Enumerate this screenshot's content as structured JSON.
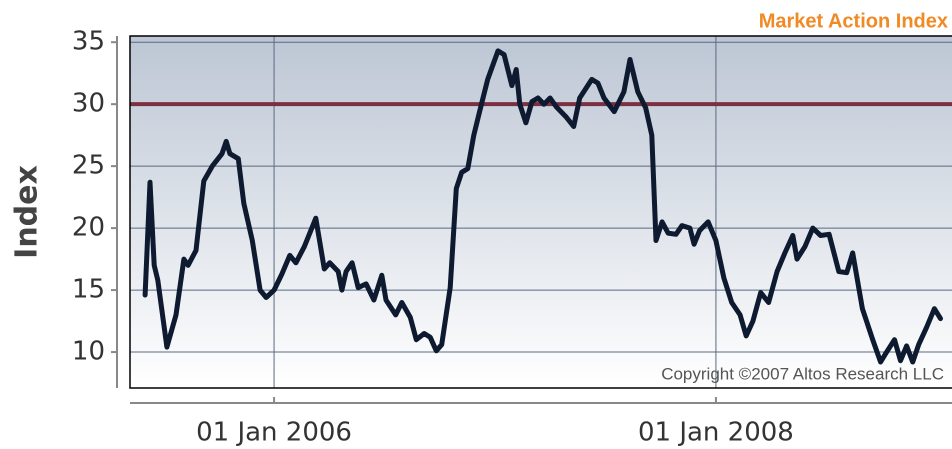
{
  "chart_data": {
    "type": "line",
    "title": "Market Action Index",
    "ylabel": "Index",
    "annotation": "Copyright ©2007 Altos Research LLC",
    "reference_line": {
      "value": 30,
      "color": "#7a3040"
    },
    "xlim": [
      "2005-05-08",
      "2009-01-25"
    ],
    "xticks": [
      {
        "value": "2006-01-01",
        "label": "01 Jan 2006"
      },
      {
        "value": "2008-01-01",
        "label": "01 Jan 2008"
      }
    ],
    "ylim": [
      7.1,
      35.5
    ],
    "yticks": [
      10,
      15,
      20,
      25,
      30,
      35
    ],
    "grid": true,
    "x": [
      "2005-06-02",
      "2005-06-10",
      "2005-06-17",
      "2005-06-23",
      "2005-07-08",
      "2005-07-23",
      "2005-08-05",
      "2005-08-12",
      "2005-08-25",
      "2005-09-07",
      "2005-09-21",
      "2005-10-07",
      "2005-10-14",
      "2005-10-20",
      "2005-11-03",
      "2005-11-12",
      "2005-11-26",
      "2005-12-09",
      "2005-12-19",
      "2006-01-01",
      "2006-01-14",
      "2006-01-27",
      "2006-02-06",
      "2006-02-20",
      "2006-03-11",
      "2006-03-25",
      "2006-04-03",
      "2006-04-17",
      "2006-04-23",
      "2006-04-30",
      "2006-05-10",
      "2006-05-20",
      "2006-06-02",
      "2006-06-15",
      "2006-06-28",
      "2006-07-05",
      "2006-07-21",
      "2006-07-31",
      "2006-08-14",
      "2006-08-24",
      "2006-09-06",
      "2006-09-16",
      "2006-09-26",
      "2006-10-05",
      "2006-10-19",
      "2006-10-29",
      "2006-11-07",
      "2006-11-17",
      "2006-11-27",
      "2006-12-07",
      "2006-12-20",
      "2007-01-06",
      "2007-01-16",
      "2007-01-29",
      "2007-02-05",
      "2007-02-11",
      "2007-02-21",
      "2007-03-03",
      "2007-03-13",
      "2007-03-23",
      "2007-04-02",
      "2007-04-12",
      "2007-04-28",
      "2007-05-11",
      "2007-05-21",
      "2007-06-10",
      "2007-06-20",
      "2007-06-30",
      "2007-07-17",
      "2007-08-02",
      "2007-08-12",
      "2007-08-25",
      "2007-09-07",
      "2007-09-17",
      "2007-09-24",
      "2007-10-04",
      "2007-10-14",
      "2007-10-27",
      "2007-11-06",
      "2007-11-19",
      "2007-11-26",
      "2007-12-05",
      "2007-12-19",
      "2008-01-01",
      "2008-01-14",
      "2008-01-27",
      "2008-02-10",
      "2008-02-20",
      "2008-03-02",
      "2008-03-15",
      "2008-03-28",
      "2008-04-11",
      "2008-04-24",
      "2008-05-07",
      "2008-05-14",
      "2008-05-27",
      "2008-06-09",
      "2008-06-22",
      "2008-07-06",
      "2008-07-22",
      "2008-08-04",
      "2008-08-14",
      "2008-08-30",
      "2008-09-16",
      "2008-09-29",
      "2008-10-09",
      "2008-10-22",
      "2008-11-01",
      "2008-11-11",
      "2008-11-21",
      "2008-12-01",
      "2008-12-14",
      "2008-12-27",
      "2009-01-06"
    ],
    "series": [
      {
        "name": "Market Action Index",
        "color": "#0e1a30",
        "values": [
          14.6,
          23.7,
          17,
          15.8,
          10.4,
          13,
          17.5,
          17,
          18.2,
          23.8,
          25,
          26,
          27,
          26,
          25.6,
          22,
          19,
          15,
          14.4,
          15,
          16.3,
          17.8,
          17.2,
          18.5,
          20.8,
          16.7,
          17.2,
          16.5,
          15,
          16.5,
          17.2,
          15.2,
          15.5,
          14.2,
          16.2,
          14.2,
          13,
          14,
          12.8,
          11,
          11.5,
          11.2,
          10.1,
          10.6,
          15.2,
          23.2,
          24.5,
          24.8,
          27.5,
          29.5,
          32,
          34.3,
          34,
          31.5,
          32.8,
          30,
          28.5,
          30.2,
          30.5,
          30,
          30.5,
          29.8,
          29,
          28.2,
          30.5,
          32,
          31.7,
          30.5,
          29.4,
          31,
          33.6,
          31,
          29.7,
          27.5,
          19,
          20.5,
          19.6,
          19.5,
          20.2,
          20,
          18.7,
          19.8,
          20.5,
          19,
          16,
          14,
          13,
          11.3,
          12.5,
          14.8,
          14,
          16.5,
          18,
          19.4,
          17.5,
          18.5,
          20,
          19.4,
          19.5,
          16.5,
          16.4,
          18,
          13.5,
          11,
          9.2,
          10,
          11,
          9.3,
          10.5,
          9.2,
          10.6,
          12,
          13.5,
          12.7
        ]
      }
    ]
  }
}
